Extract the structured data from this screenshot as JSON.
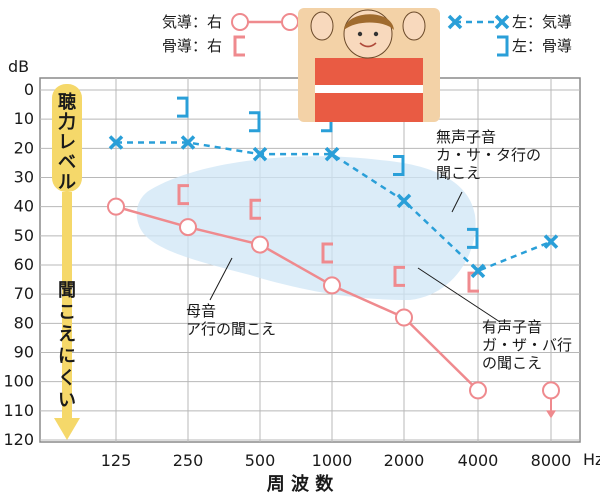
{
  "chart_data": {
    "type": "line",
    "y_unit": "dB",
    "x_unit": "Hz",
    "xlabel": "周 波 数",
    "categories": [
      "125",
      "250",
      "500",
      "1000",
      "2000",
      "4000",
      "8000"
    ],
    "y_ticks": [
      "0",
      "10",
      "20",
      "30",
      "40",
      "50",
      "60",
      "70",
      "80",
      "90",
      "100",
      "110",
      "120"
    ],
    "ylim": [
      0,
      120
    ],
    "y_inverted": true,
    "grid": true,
    "legend_position": "top",
    "series": [
      {
        "name": "気導：右",
        "marker": "circle",
        "color": "#ef8a8e",
        "line": "solid",
        "values": [
          40,
          47,
          53,
          67,
          78,
          103,
          103
        ],
        "no_response_last": true
      },
      {
        "name": "骨導：右",
        "marker": "bracket-left",
        "color": "#ef8a8e",
        "line": "none",
        "values": [
          null,
          40,
          45,
          60,
          68,
          70,
          null
        ]
      },
      {
        "name": "左：気導",
        "marker": "cross",
        "color": "#2a9fd8",
        "line": "dashed",
        "values": [
          18,
          18,
          22,
          22,
          38,
          62,
          52
        ]
      },
      {
        "name": "左：骨導",
        "marker": "bracket-right",
        "color": "#2a9fd8",
        "line": "none",
        "values": [
          null,
          10,
          15,
          15,
          30,
          55,
          null
        ]
      }
    ],
    "side_arrow": {
      "top_label": "聴力レベル",
      "bottom_label": "聞こえにくい"
    },
    "annotations": [
      {
        "lines": [
          "無声子音",
          "カ・サ・タ行の",
          "聞こえ"
        ]
      },
      {
        "lines": [
          "母音",
          "ア行の聞こえ"
        ]
      },
      {
        "lines": [
          "有声子音",
          "ガ・ザ・バ行",
          "の聞こえ"
        ]
      }
    ],
    "colors": {
      "right": "#ef8a8e",
      "left": "#2a9fd8",
      "band": "#cfe6f5",
      "arrow": "#f5d86a"
    }
  }
}
